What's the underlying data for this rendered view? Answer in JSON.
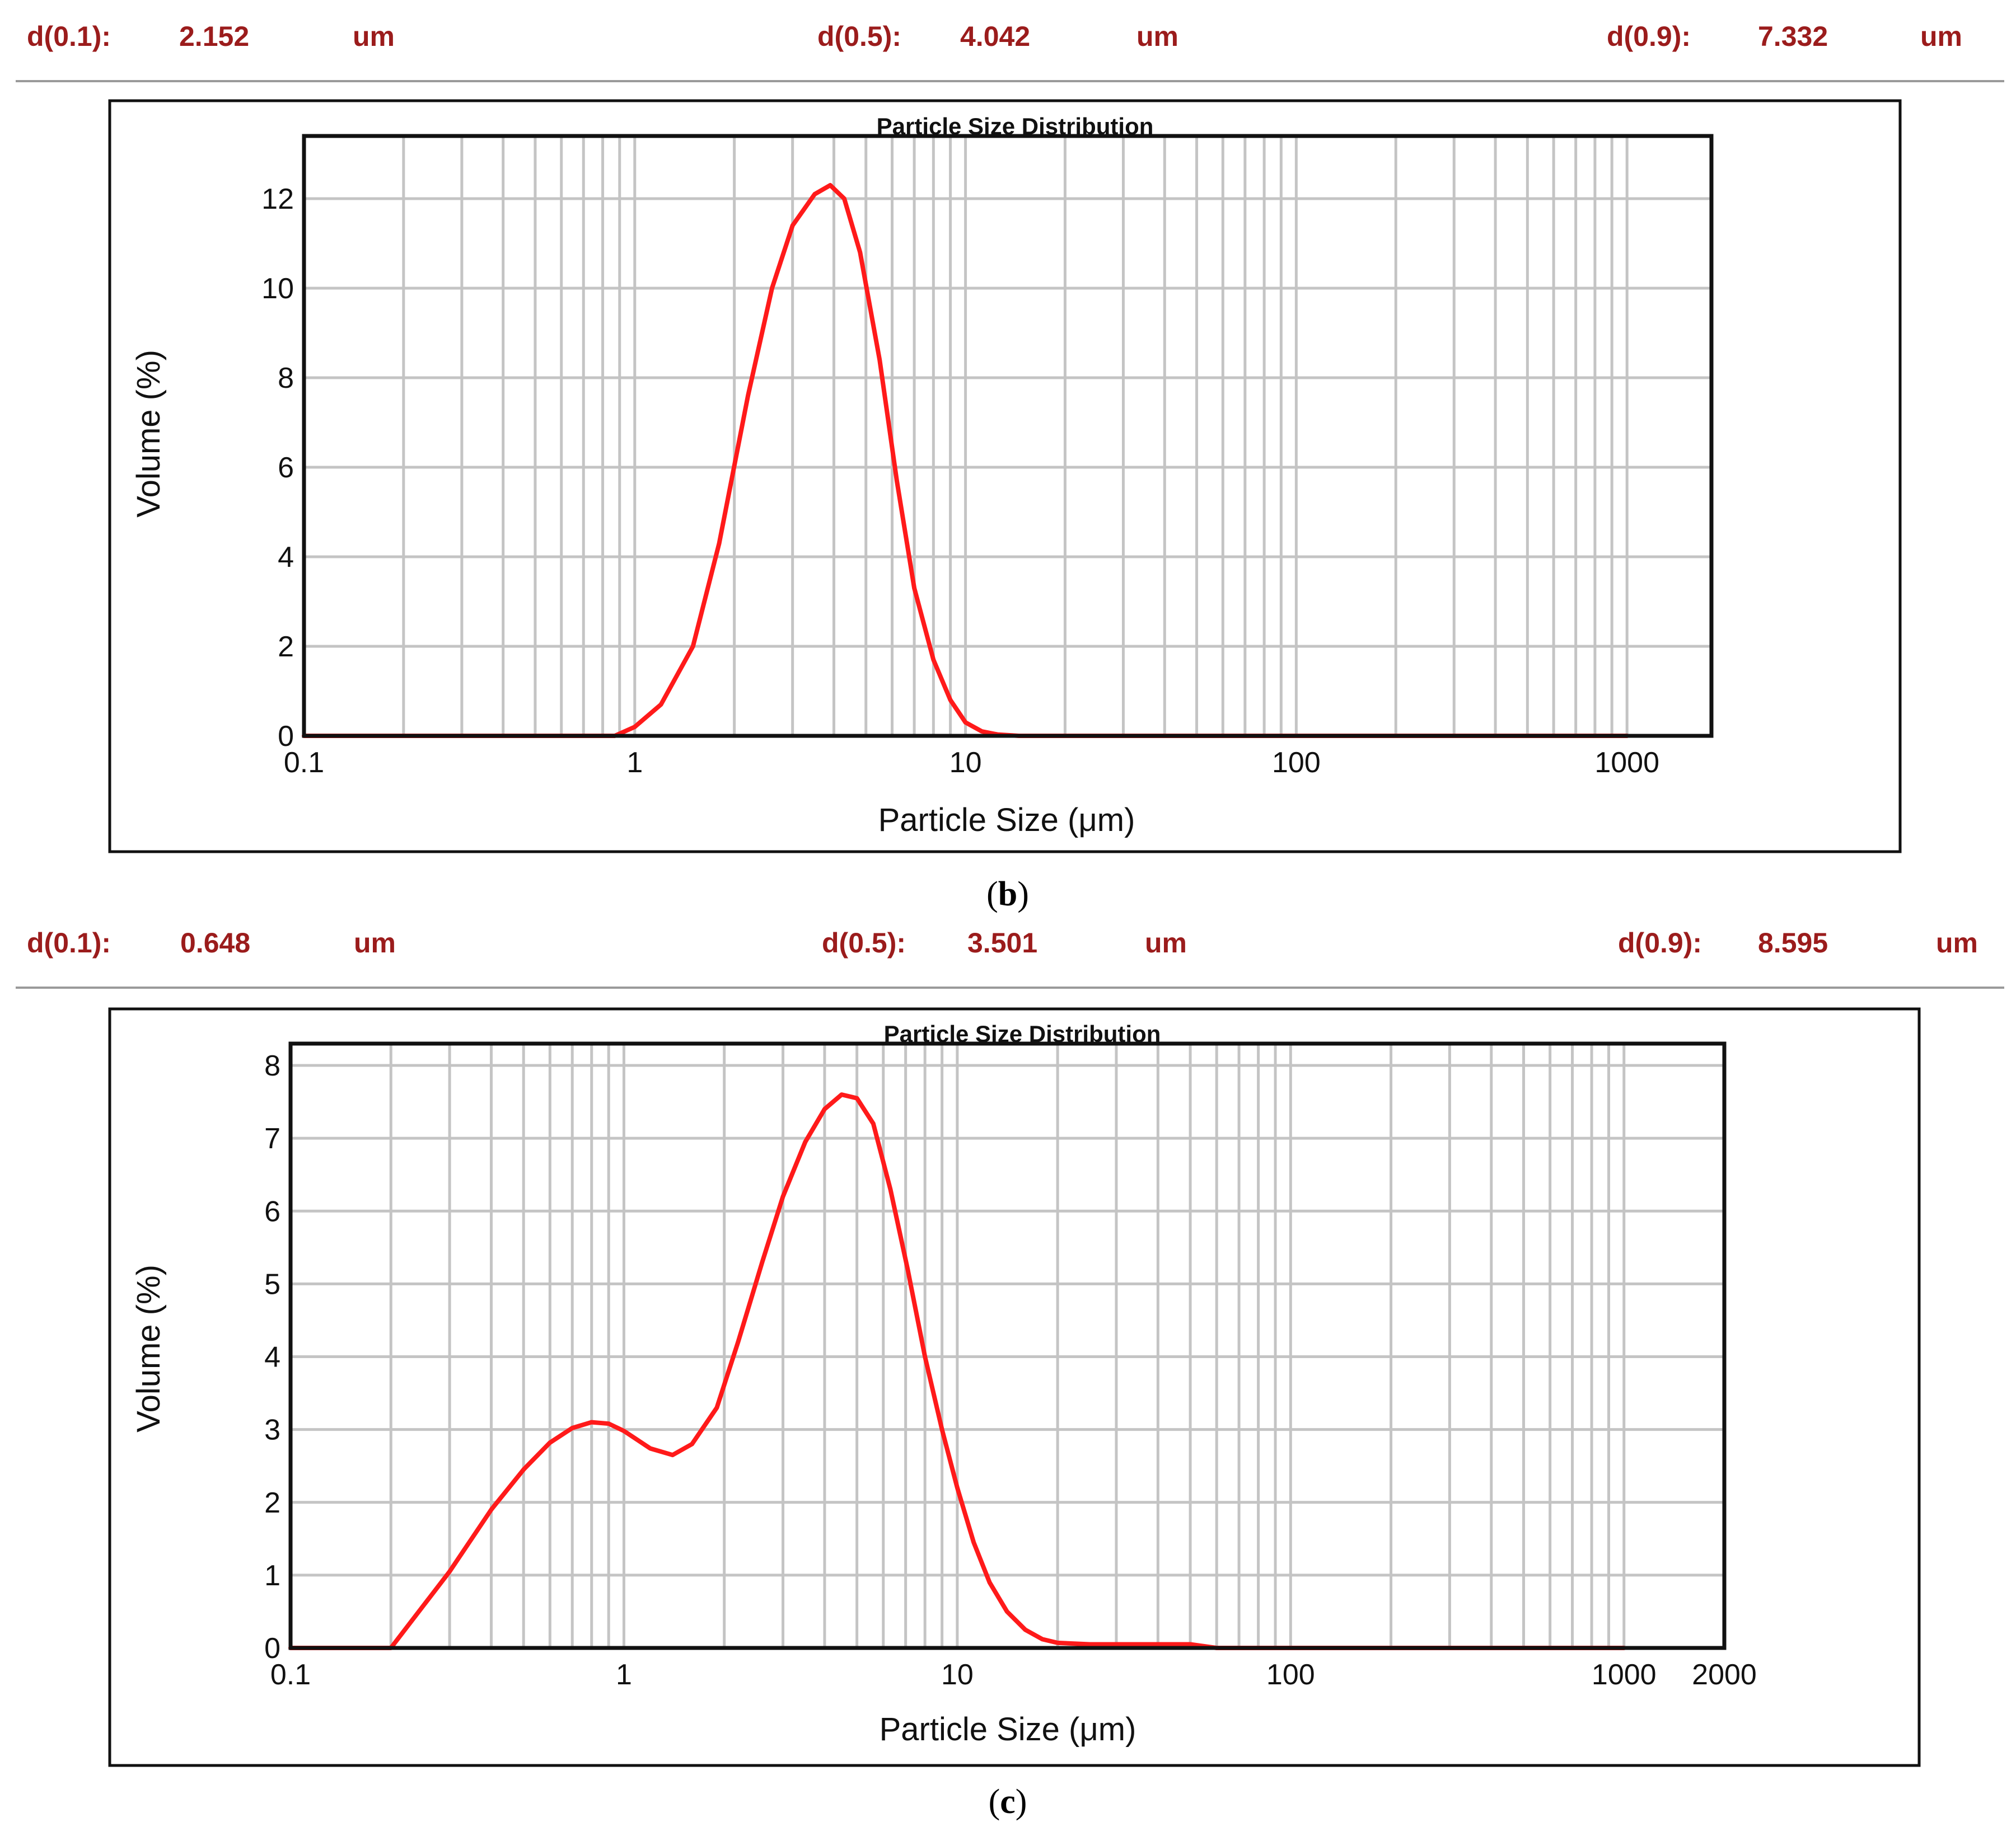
{
  "colors": {
    "stat_text": "#9b1c1c",
    "curve": "#ff1a1a",
    "grid": "#c4c4c4"
  },
  "chart_data": [
    {
      "type": "line",
      "panel": "b",
      "caption_letter": "b",
      "stats": [
        {
          "label": "d(0.1):",
          "value": "2.152",
          "unit": "um"
        },
        {
          "label": "d(0.5):",
          "value": "4.042",
          "unit": "um"
        },
        {
          "label": "d(0.9):",
          "value": "7.332",
          "unit": "um"
        }
      ],
      "title": "Particle Size Distribution",
      "xlabel": "Particle Size (μm)",
      "ylabel": "Volume (%)",
      "xscale": "log",
      "xlim": [
        0.1,
        1800
      ],
      "ylim": [
        0,
        13.4
      ],
      "x_ticks": [
        0.1,
        1,
        10,
        100,
        1000
      ],
      "x_tick_labels": [
        "0.1",
        "1",
        "10",
        "100",
        "1000"
      ],
      "y_ticks": [
        0,
        2,
        4,
        6,
        8,
        10,
        12
      ],
      "y_tick_labels": [
        "0",
        "2",
        "4",
        "6",
        "8",
        "10",
        "12"
      ],
      "grid": true,
      "series": [
        {
          "name": "Volume",
          "x": [
            0.1,
            0.3,
            0.87,
            1.0,
            1.2,
            1.5,
            1.8,
            2.2,
            2.6,
            3.0,
            3.5,
            3.9,
            4.3,
            4.8,
            5.5,
            6.2,
            7.0,
            8.0,
            9.0,
            10.0,
            11.2,
            12.5,
            14.5,
            20,
            100,
            1000
          ],
          "y": [
            0,
            0,
            0,
            0.2,
            0.7,
            2.0,
            4.3,
            7.6,
            10.0,
            11.4,
            12.1,
            12.3,
            12.0,
            10.8,
            8.4,
            5.7,
            3.3,
            1.7,
            0.8,
            0.3,
            0.1,
            0.03,
            0,
            0,
            0,
            0
          ]
        }
      ]
    },
    {
      "type": "line",
      "panel": "c",
      "caption_letter": "c",
      "stats": [
        {
          "label": "d(0.1):",
          "value": "0.648",
          "unit": "um"
        },
        {
          "label": "d(0.5):",
          "value": "3.501",
          "unit": "um"
        },
        {
          "label": "d(0.9):",
          "value": "8.595",
          "unit": "um"
        }
      ],
      "title": "Particle Size Distribution",
      "xlabel": "Particle Size (μm)",
      "ylabel": "Volume (%)",
      "xscale": "log",
      "xlim": [
        0.1,
        2000
      ],
      "ylim": [
        0,
        8.3
      ],
      "x_ticks": [
        0.1,
        1,
        10,
        100,
        1000,
        2000
      ],
      "x_tick_labels": [
        "0.1",
        "1",
        "10",
        "100",
        "1000",
        "2000"
      ],
      "y_ticks": [
        0,
        1,
        2,
        3,
        4,
        5,
        6,
        7,
        8
      ],
      "y_tick_labels": [
        "0",
        "1",
        "2",
        "3",
        "4",
        "5",
        "6",
        "7",
        "8"
      ],
      "grid": true,
      "series": [
        {
          "name": "Volume",
          "x": [
            0.1,
            0.15,
            0.2,
            0.3,
            0.4,
            0.5,
            0.6,
            0.7,
            0.8,
            0.9,
            1.0,
            1.2,
            1.4,
            1.6,
            1.9,
            2.2,
            2.6,
            3.0,
            3.5,
            4.0,
            4.5,
            5.0,
            5.6,
            6.3,
            7.1,
            8.0,
            9.0,
            10.0,
            11.2,
            12.5,
            14.1,
            16,
            18,
            20,
            25,
            30,
            40,
            50,
            60,
            100,
            1000
          ],
          "y": [
            0,
            0,
            0,
            1.05,
            1.9,
            2.45,
            2.82,
            3.02,
            3.1,
            3.08,
            2.98,
            2.74,
            2.65,
            2.8,
            3.3,
            4.2,
            5.3,
            6.2,
            6.95,
            7.4,
            7.6,
            7.55,
            7.2,
            6.3,
            5.2,
            4.0,
            3.0,
            2.2,
            1.45,
            0.9,
            0.5,
            0.25,
            0.12,
            0.07,
            0.05,
            0.05,
            0.05,
            0.05,
            0,
            0,
            0
          ]
        }
      ]
    }
  ]
}
